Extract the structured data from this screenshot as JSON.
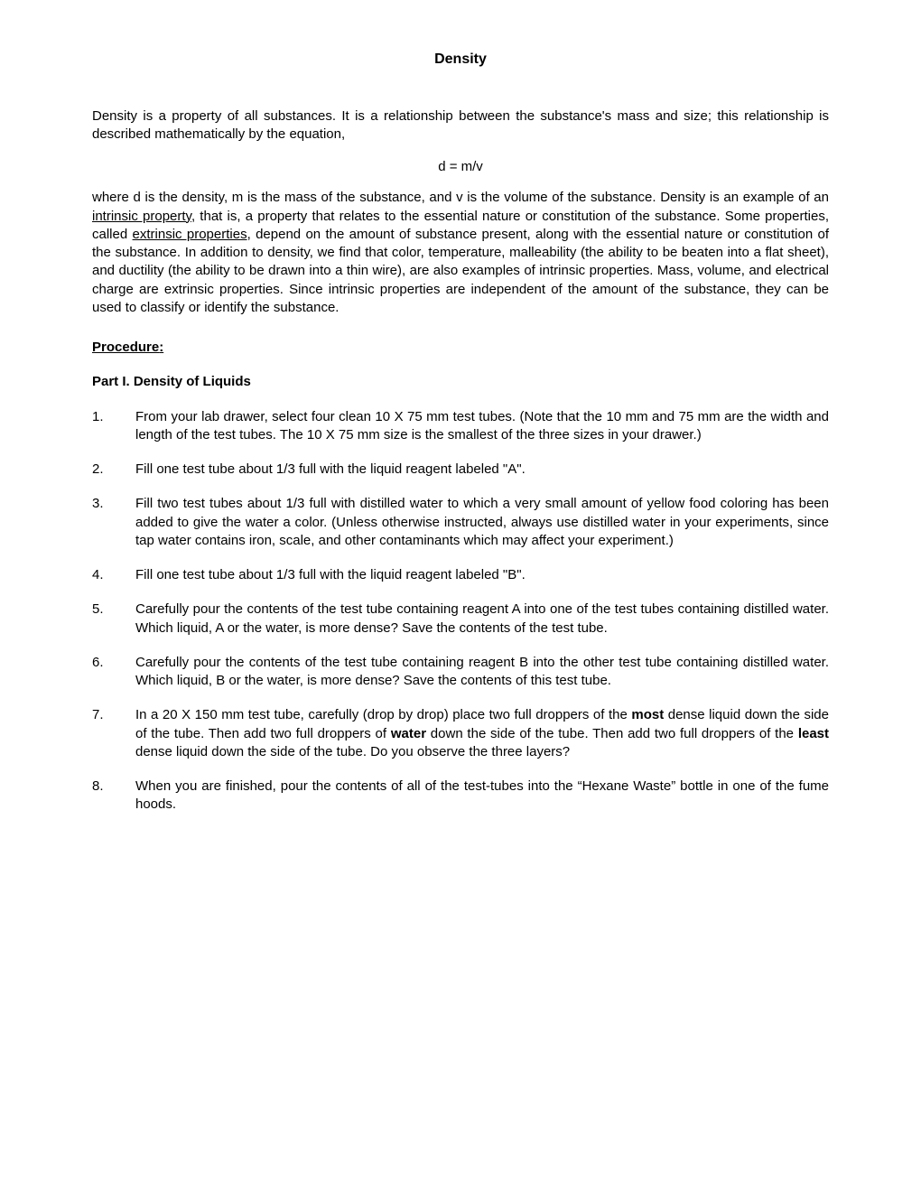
{
  "title": "Density",
  "intro": "Density is a property of all substances. It is a relationship between the substance's mass and size; this relationship is described mathematically by the equation,",
  "equation": "d = m/v",
  "para2_a": "where d is the density, m is the mass of the substance, and v is the volume of the substance. Density is an example of an ",
  "para2_u1": "intrinsic property",
  "para2_b": ", that is, a property that relates to the essential nature or constitution of the substance. Some properties, called ",
  "para2_u2": "extrinsic properties",
  "para2_c": ", depend on the amount of substance present, along with the essential nature or constitution of the substance. In addition to density, we find that color, temperature, malleability (the ability to be beaten into a flat sheet), and ductility (the ability to be drawn into a thin wire), are also examples of intrinsic properties. Mass, volume, and electrical charge are extrinsic properties. Since intrinsic properties are independent of the amount of the substance, they can be used to classify or identify the substance.",
  "procedure_heading": "Procedure",
  "part1_heading": "Part I. Density of Liquids",
  "items": [
    {
      "num": "1.",
      "text": "From your lab drawer, select four clean 10 X 75 mm test tubes. (Note that the 10 mm and 75 mm are the width and length of the test tubes. The 10 X 75 mm size is the smallest of the three sizes in your drawer.)"
    },
    {
      "num": "2.",
      "text": "Fill one test tube about 1/3 full with the liquid reagent labeled \"A\"."
    },
    {
      "num": "3.",
      "text": "Fill two test tubes about 1/3 full with distilled water to which a very small amount of yellow food coloring has been added to give the water a color. (Unless otherwise instructed, always use distilled water in your experiments, since tap water contains iron, scale, and other contaminants which may affect your experiment.)"
    },
    {
      "num": "4.",
      "text": "Fill one test tube about 1/3 full with the liquid reagent labeled \"B\"."
    },
    {
      "num": "5.",
      "text": "Carefully pour the contents of the test tube containing reagent A into one of the test tubes containing distilled water. Which liquid, A or the water, is more dense? Save the contents of the test tube."
    },
    {
      "num": "6.",
      "text": "Carefully pour the contents of the test tube containing reagent B into the other test tube containing distilled water. Which liquid, B or the water, is more dense? Save the contents of this test tube."
    }
  ],
  "item7": {
    "num": "7.",
    "a": "In a 20 X 150 mm test tube, carefully (drop by drop) place two full droppers of the ",
    "b1": "most",
    "c": " dense liquid down the side of the tube. Then add two full droppers of ",
    "b2": "water",
    "d": " down the side of the tube. Then add two full droppers of the ",
    "b3": "least",
    "e": " dense liquid down the side of the tube. Do you observe the three layers?"
  },
  "item8": {
    "num": "8.",
    "text": "When you are finished, pour the contents of all of the test-tubes into the “Hexane Waste” bottle in one of the fume hoods."
  }
}
